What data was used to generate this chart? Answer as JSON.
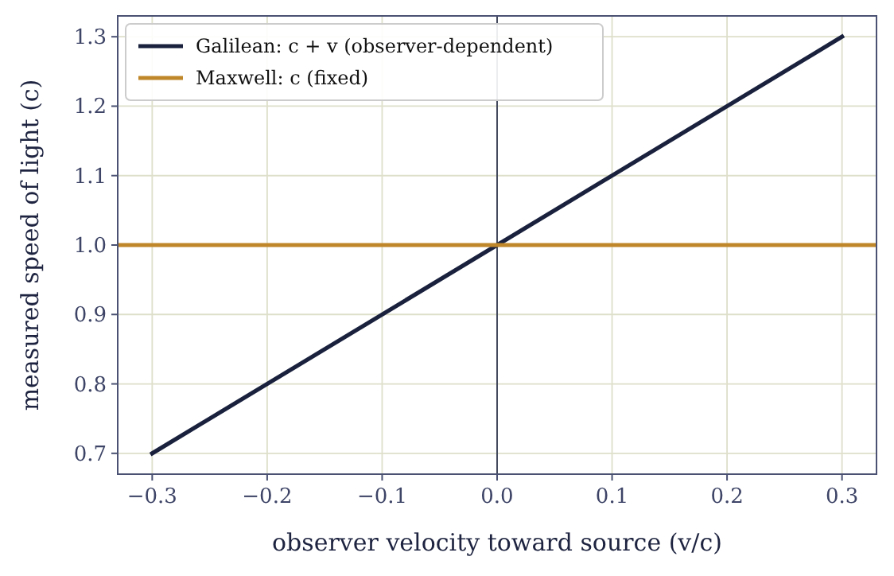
{
  "chart_data": {
    "type": "line",
    "xlabel": "observer velocity toward source (v/c)",
    "ylabel": "measured speed of light (c)",
    "xlim": [
      -0.33,
      0.33
    ],
    "ylim": [
      0.67,
      1.33
    ],
    "xticks": [
      -0.3,
      -0.2,
      -0.1,
      {
        "value": 0,
        "label": "0.0"
      },
      0.1,
      0.2,
      0.3
    ],
    "yticks": [
      0.7,
      0.8,
      0.9,
      {
        "value": 1,
        "label": "1.0"
      },
      1.1,
      1.2,
      1.3
    ],
    "series": [
      {
        "name": "Galilean: c + v (observer-dependent)",
        "color": "#19213d",
        "x": [
          -0.3,
          0.3
        ],
        "values": [
          0.7,
          1.3
        ]
      },
      {
        "name": "Maxwell: c (fixed)",
        "color": "#c0872a",
        "x": [
          -0.33,
          0.33
        ],
        "values": [
          1.0,
          1.0
        ]
      }
    ],
    "ref_lines": [
      {
        "axis": "x",
        "value": 0,
        "color": "#444a5e"
      }
    ],
    "grid": true,
    "legend": "top left",
    "line_style": "solid",
    "marker": "none"
  }
}
